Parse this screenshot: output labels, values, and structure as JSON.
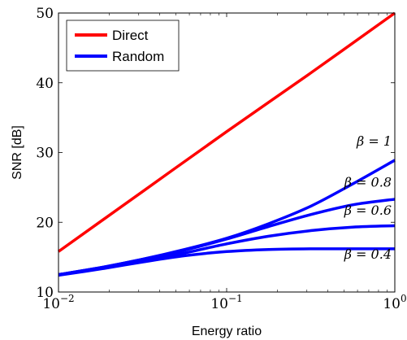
{
  "chart_data": {
    "type": "line",
    "xlabel": "Energy ratio",
    "ylabel": "SNR [dB]",
    "x_scale": "log",
    "xlim": [
      0.01,
      1
    ],
    "ylim": [
      10,
      50
    ],
    "x_ticks": [
      {
        "value": 0.01,
        "base": "10",
        "exp": "−2"
      },
      {
        "value": 0.1,
        "base": "10",
        "exp": "−1"
      },
      {
        "value": 1,
        "base": "10",
        "exp": "0"
      }
    ],
    "y_ticks": [
      {
        "value": 10,
        "label": "10"
      },
      {
        "value": 20,
        "label": "20"
      },
      {
        "value": 30,
        "label": "30"
      },
      {
        "value": 40,
        "label": "40"
      },
      {
        "value": 50,
        "label": "50"
      }
    ],
    "grid": false,
    "legend_position": "top-left",
    "legend": [
      {
        "label": "Direct",
        "color": "#ff0000"
      },
      {
        "label": "Random",
        "color": "#0000ff"
      }
    ],
    "series": [
      {
        "name": "Direct",
        "color": "#ff0000",
        "points": [
          [
            0.01,
            15.8
          ],
          [
            0.0316,
            24.4
          ],
          [
            0.1,
            33.0
          ],
          [
            0.316,
            41.4
          ],
          [
            1,
            50.0
          ]
        ]
      },
      {
        "name": "Random",
        "annotation": "β = 1",
        "color": "#0000ff",
        "points": [
          [
            0.01,
            12.5
          ],
          [
            0.0178,
            13.5
          ],
          [
            0.0316,
            14.7
          ],
          [
            0.0562,
            16.1
          ],
          [
            0.1,
            17.7
          ],
          [
            0.178,
            19.8
          ],
          [
            0.316,
            22.3
          ],
          [
            0.562,
            25.5
          ],
          [
            1,
            28.9
          ]
        ]
      },
      {
        "name": "Random",
        "annotation": "β = 0.8",
        "color": "#0000ff",
        "points": [
          [
            0.01,
            12.5
          ],
          [
            0.0178,
            13.5
          ],
          [
            0.0316,
            14.7
          ],
          [
            0.0562,
            16.0
          ],
          [
            0.1,
            17.6
          ],
          [
            0.178,
            19.4
          ],
          [
            0.316,
            21.1
          ],
          [
            0.562,
            22.5
          ],
          [
            1,
            23.3
          ]
        ]
      },
      {
        "name": "Random",
        "annotation": "β = 0.6",
        "color": "#0000ff",
        "points": [
          [
            0.01,
            12.5
          ],
          [
            0.0178,
            13.4
          ],
          [
            0.0316,
            14.5
          ],
          [
            0.0562,
            15.6
          ],
          [
            0.1,
            16.9
          ],
          [
            0.178,
            18.0
          ],
          [
            0.316,
            18.8
          ],
          [
            0.562,
            19.3
          ],
          [
            1,
            19.5
          ]
        ]
      },
      {
        "name": "Random",
        "annotation": "β = 0.4",
        "color": "#0000ff",
        "points": [
          [
            0.01,
            12.4
          ],
          [
            0.0178,
            13.3
          ],
          [
            0.0316,
            14.3
          ],
          [
            0.0562,
            15.2
          ],
          [
            0.1,
            15.8
          ],
          [
            0.178,
            16.1
          ],
          [
            0.316,
            16.2
          ],
          [
            0.562,
            16.2
          ],
          [
            1,
            16.2
          ]
        ]
      }
    ],
    "annotations": [
      {
        "label": "β = 1",
        "x": 1,
        "y": 31.0
      },
      {
        "label": "β = 0.8",
        "x": 1,
        "y": 25.1
      },
      {
        "label": "β = 0.6",
        "x": 1,
        "y": 21.1
      },
      {
        "label": "β = 0.4",
        "x": 1,
        "y": 14.8
      }
    ]
  }
}
